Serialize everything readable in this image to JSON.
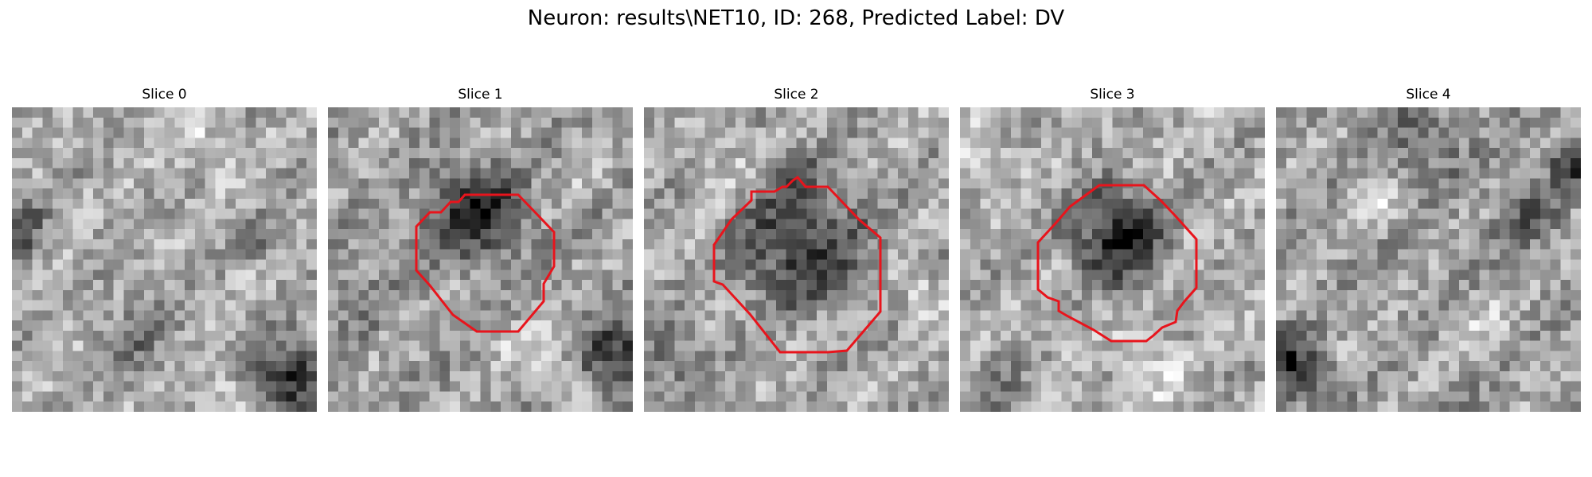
{
  "figure": {
    "title": "Neuron: results\\NET10, ID: 268, Predicted Label: DV"
  },
  "slices": [
    {
      "title": "Slice 0",
      "has_contour": false
    },
    {
      "title": "Slice 1",
      "has_contour": true
    },
    {
      "title": "Slice 2",
      "has_contour": true
    },
    {
      "title": "Slice 3",
      "has_contour": true
    },
    {
      "title": "Slice 4",
      "has_contour": false
    }
  ],
  "colors": {
    "contour": "#e8141c",
    "background": "#ffffff"
  }
}
